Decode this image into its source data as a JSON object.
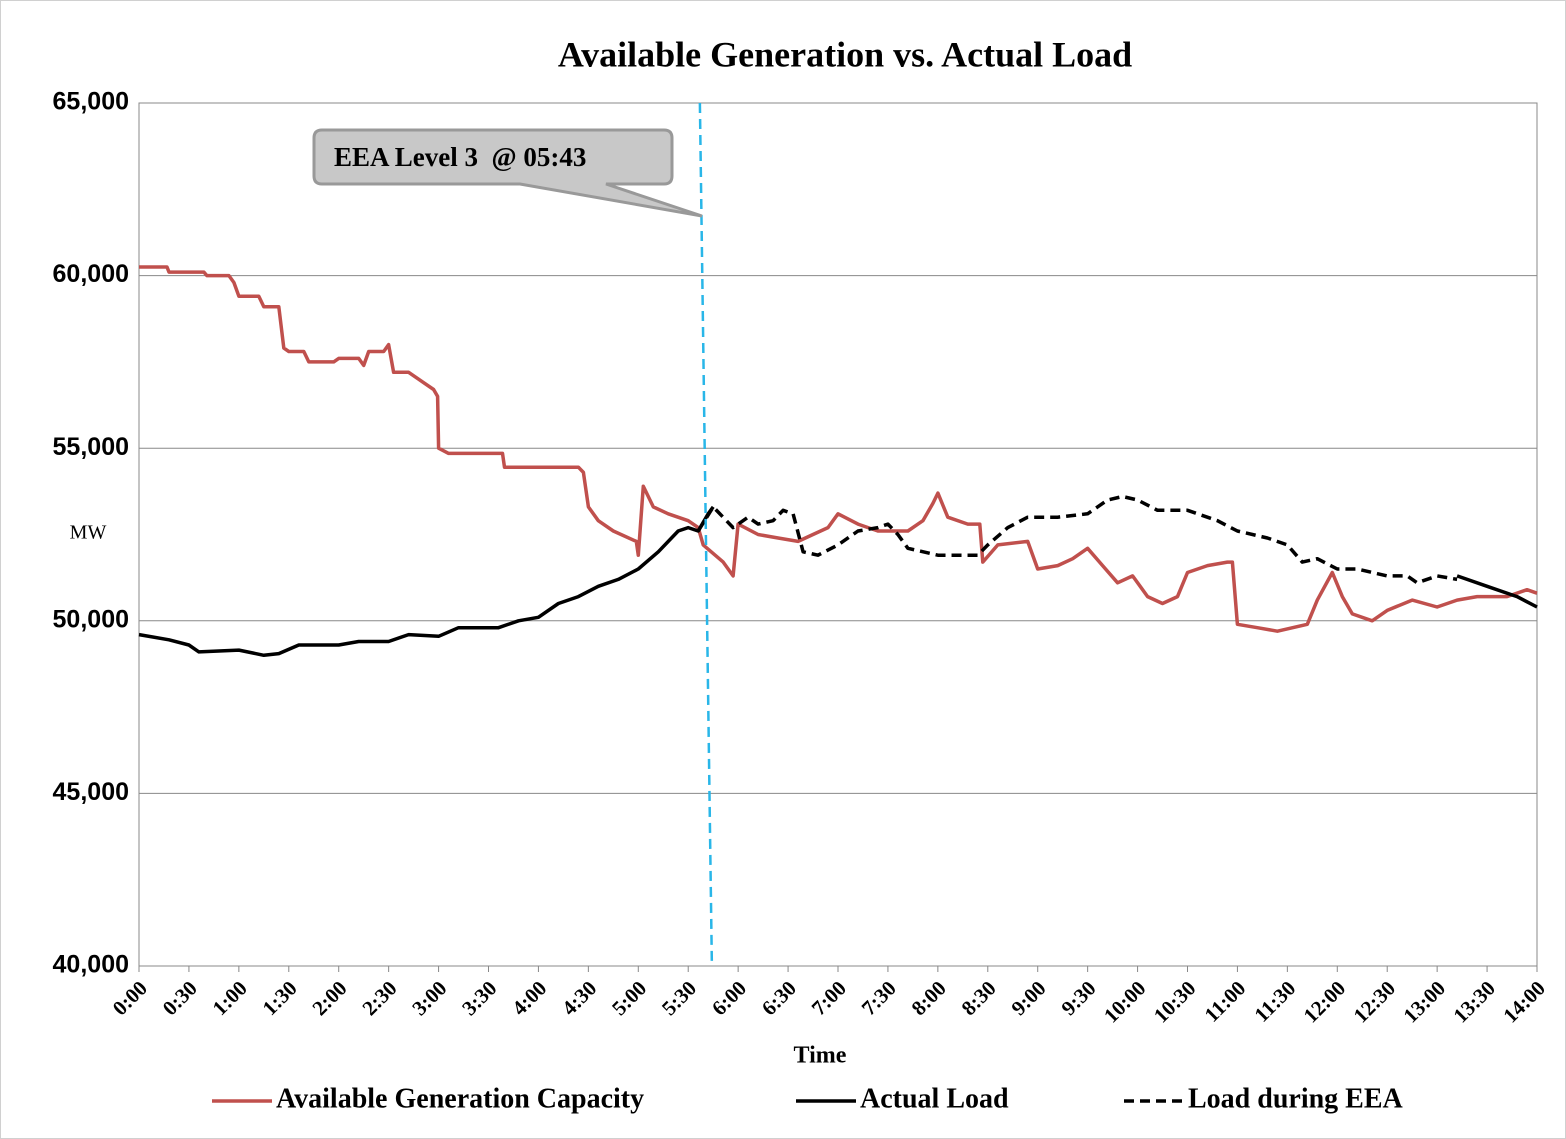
{
  "chart_data": {
    "type": "line",
    "title": "Available Generation vs. Actual Load",
    "x_label": "Time",
    "y_label": "MW",
    "xlim": [
      0,
      14
    ],
    "xticks": [
      {
        "value": 0,
        "label": "0:00"
      },
      {
        "value": 0.5,
        "label": "0:30"
      },
      {
        "value": 1,
        "label": "1:00"
      },
      {
        "value": 1.5,
        "label": "1:30"
      },
      {
        "value": 2,
        "label": "2:00"
      },
      {
        "value": 2.5,
        "label": "2:30"
      },
      {
        "value": 3,
        "label": "3:00"
      },
      {
        "value": 3.5,
        "label": "3:30"
      },
      {
        "value": 4,
        "label": "4:00"
      },
      {
        "value": 4.5,
        "label": "4:30"
      },
      {
        "value": 5,
        "label": "5:00"
      },
      {
        "value": 5.5,
        "label": "5:30"
      },
      {
        "value": 6,
        "label": "6:00"
      },
      {
        "value": 6.5,
        "label": "6:30"
      },
      {
        "value": 7,
        "label": "7:00"
      },
      {
        "value": 7.5,
        "label": "7:30"
      },
      {
        "value": 8,
        "label": "8:00"
      },
      {
        "value": 8.5,
        "label": "8:30"
      },
      {
        "value": 9,
        "label": "9:00"
      },
      {
        "value": 9.5,
        "label": "9:30"
      },
      {
        "value": 10,
        "label": "10:00"
      },
      {
        "value": 10.5,
        "label": "10:30"
      },
      {
        "value": 11,
        "label": "11:00"
      },
      {
        "value": 11.5,
        "label": "11:30"
      },
      {
        "value": 12,
        "label": "12:00"
      },
      {
        "value": 12.5,
        "label": "12:30"
      },
      {
        "value": 13,
        "label": "13:00"
      },
      {
        "value": 13.5,
        "label": "13:30"
      },
      {
        "value": 14,
        "label": "14:00"
      }
    ],
    "ylim": [
      40000,
      65000
    ],
    "yticks": [
      {
        "value": 40000,
        "label": "40,000"
      },
      {
        "value": 45000,
        "label": "45,000"
      },
      {
        "value": 50000,
        "label": "50,000"
      },
      {
        "value": 55000,
        "label": "55,000"
      },
      {
        "value": 60000,
        "label": "60,000"
      },
      {
        "value": 65000,
        "label": "65,000"
      }
    ],
    "grid": true,
    "annotation": {
      "text": "EEA Level 3  @ 05:43",
      "x": 5.717,
      "color": "#29b6e8"
    },
    "series": [
      {
        "name": "Available Generation Capacity",
        "color": "#c0504d",
        "dash": false,
        "x": [
          0,
          0.28,
          0.3,
          0.65,
          0.68,
          0.9,
          0.95,
          1.0,
          1.2,
          1.25,
          1.4,
          1.45,
          1.5,
          1.65,
          1.7,
          1.95,
          2.0,
          2.2,
          2.25,
          2.3,
          2.45,
          2.5,
          2.55,
          2.7,
          2.8,
          2.95,
          2.99,
          3.0,
          3.1,
          3.64,
          3.66,
          4.4,
          4.45,
          4.5,
          4.6,
          4.75,
          4.98,
          5.0,
          5.05,
          5.15,
          5.3,
          5.5,
          5.6,
          5.65,
          5.85,
          5.95,
          6.0,
          6.2,
          6.4,
          6.6,
          6.75,
          6.9,
          7.0,
          7.2,
          7.4,
          7.7,
          7.85,
          7.95,
          8.0,
          8.1,
          8.3,
          8.42,
          8.45,
          8.6,
          8.9,
          9.0,
          9.2,
          9.35,
          9.5,
          9.65,
          9.8,
          9.95,
          10.1,
          10.25,
          10.4,
          10.5,
          10.7,
          10.9,
          10.95,
          11.0,
          11.2,
          11.4,
          11.7,
          11.8,
          11.95,
          12.05,
          12.15,
          12.35,
          12.5,
          12.75,
          13.0,
          13.2,
          13.4,
          13.7,
          13.9,
          14.0
        ],
        "values": [
          60250,
          60250,
          60100,
          60100,
          60000,
          60000,
          59800,
          59400,
          59400,
          59100,
          59100,
          57900,
          57800,
          57800,
          57500,
          57500,
          57600,
          57600,
          57400,
          57800,
          57800,
          58000,
          57200,
          57200,
          57000,
          56700,
          56500,
          55000,
          54850,
          54850,
          54450,
          54450,
          54300,
          53300,
          52900,
          52600,
          52300,
          51900,
          53900,
          53300,
          53100,
          52900,
          52700,
          52200,
          51700,
          51300,
          52800,
          52500,
          52400,
          52300,
          52500,
          52700,
          53100,
          52800,
          52600,
          52600,
          52900,
          53400,
          53700,
          53000,
          52800,
          52800,
          51700,
          52200,
          52300,
          51500,
          51600,
          51800,
          52100,
          51600,
          51100,
          51300,
          50700,
          50500,
          50700,
          51400,
          51600,
          51700,
          51700,
          49900,
          49800,
          49700,
          49900,
          50600,
          51400,
          50700,
          50200,
          50000,
          50300,
          50600,
          50400,
          50600,
          50700,
          50700,
          50900,
          50800
        ]
      },
      {
        "name": "Actual Load",
        "color": "#000000",
        "dash": false,
        "x": [
          0,
          0.3,
          0.5,
          0.6,
          1.0,
          1.25,
          1.4,
          1.6,
          2.0,
          2.2,
          2.5,
          2.7,
          3.0,
          3.2,
          3.4,
          3.6,
          3.8,
          4.0,
          4.2,
          4.4,
          4.6,
          4.8,
          5.0,
          5.2,
          5.4,
          5.5,
          5.6,
          5.7,
          5.75,
          5.8,
          13.2,
          13.5,
          13.8,
          14.0
        ],
        "values": [
          49600,
          49450,
          49300,
          49100,
          49150,
          49000,
          49050,
          49300,
          49300,
          49400,
          49400,
          49600,
          49550,
          49800,
          49800,
          49800,
          50000,
          50100,
          50500,
          50700,
          51000,
          51200,
          51500,
          52000,
          52600,
          52700,
          52600,
          53100,
          53300,
          null,
          51300,
          51000,
          50700,
          50400
        ]
      },
      {
        "name": "Load during EEA",
        "color": "#000000",
        "dash": true,
        "x": [
          5.6,
          5.75,
          5.95,
          6.1,
          6.2,
          6.35,
          6.45,
          6.55,
          6.65,
          6.8,
          7.0,
          7.2,
          7.4,
          7.5,
          7.6,
          7.7,
          8.0,
          8.4,
          8.5,
          8.7,
          8.9,
          9.2,
          9.5,
          9.7,
          9.85,
          10.0,
          10.2,
          10.5,
          10.8,
          11.0,
          11.3,
          11.5,
          11.65,
          11.8,
          12.0,
          12.2,
          12.5,
          12.7,
          12.8,
          13.0,
          13.2
        ],
        "values": [
          52600,
          53300,
          52700,
          53000,
          52800,
          52900,
          53200,
          53100,
          52000,
          51900,
          52200,
          52600,
          52700,
          52800,
          52500,
          52100,
          51900,
          51900,
          52200,
          52700,
          53000,
          53000,
          53100,
          53500,
          53600,
          53500,
          53200,
          53200,
          52900,
          52600,
          52400,
          52200,
          51700,
          51800,
          51500,
          51500,
          51300,
          51300,
          51100,
          51300,
          51200
        ]
      }
    ]
  }
}
